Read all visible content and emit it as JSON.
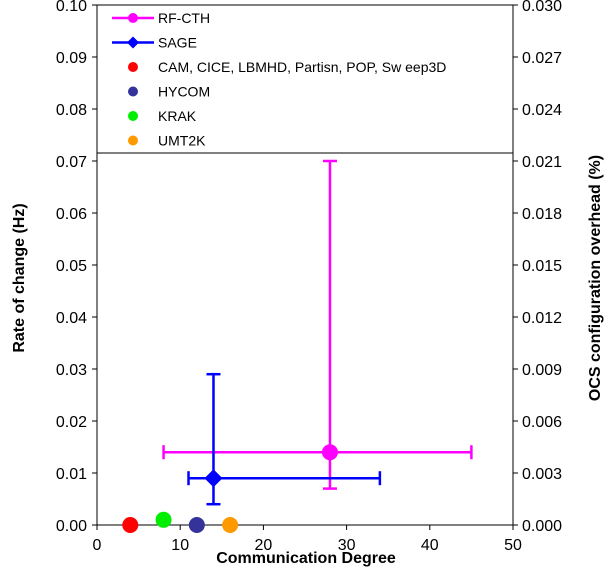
{
  "chart_data": {
    "type": "scatter",
    "xlabel": "Communication Degree",
    "ylabel": "Rate of change (Hz)",
    "y2label": "OCS configuration overhead (%)",
    "xlim": [
      0,
      50
    ],
    "ylim": [
      0,
      0.1
    ],
    "y2lim": [
      0,
      0.03
    ],
    "x_ticks": [
      "0",
      "10",
      "20",
      "30",
      "40",
      "50"
    ],
    "y_ticks": [
      "0.00",
      "0.01",
      "0.02",
      "0.03",
      "0.04",
      "0.05",
      "0.06",
      "0.07",
      "0.08",
      "0.09",
      "0.10"
    ],
    "y2_ticks": [
      "0.000",
      "0.003",
      "0.006",
      "0.009",
      "0.012",
      "0.015",
      "0.018",
      "0.021",
      "0.024",
      "0.027",
      "0.030"
    ],
    "grid": false,
    "legend_position": "top",
    "series": [
      {
        "name": "RF-CTH",
        "color": "#ff00ff",
        "marker": "circle",
        "errorbar": true,
        "x": 28,
        "y": 0.014,
        "x_range": [
          8,
          45
        ],
        "y_range": [
          0.007,
          0.07
        ]
      },
      {
        "name": "SAGE",
        "color": "#0000ff",
        "marker": "diamond",
        "errorbar": true,
        "x": 14,
        "y": 0.009,
        "x_range": [
          11,
          34
        ],
        "y_range": [
          0.004,
          0.029
        ]
      },
      {
        "name": "CAM, CICE, LBMHD, Partisn, POP, Sw eep3D",
        "color": "#ff0000",
        "marker": "circle",
        "x": 4,
        "y": 0.0
      },
      {
        "name": "HYCOM",
        "color": "#333399",
        "marker": "circle",
        "x": 12,
        "y": 0.0
      },
      {
        "name": "KRAK",
        "color": "#00ee00",
        "marker": "circle",
        "x": 8,
        "y": 0.001
      },
      {
        "name": "UMT2K",
        "color": "#ff9900",
        "marker": "circle",
        "x": 16,
        "y": 0.0
      }
    ]
  }
}
